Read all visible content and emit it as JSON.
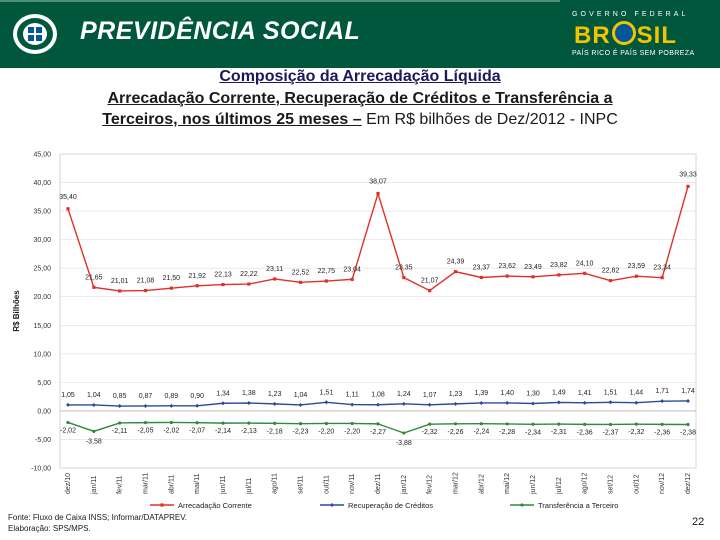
{
  "header": {
    "brand": "PREVIDÊNCIA SOCIAL",
    "gov_label": "GOVERNO FEDERAL",
    "brasil_left": "BR",
    "brasil_right": "SIL",
    "slogan": "PAÍS RICO É PAÍS SEM POBREZA",
    "colors": {
      "banner": "#00573c",
      "accent": "#f4c300"
    }
  },
  "titles": {
    "line1": "Composição da Arrecadação Líquida",
    "line2": "Arrecadação Corrente, Recuperação de Créditos e Transferência a",
    "line3_bold": "Terceiros, nos últimos 25 meses –",
    "line3_rest": " Em R$ bilhões de Dez/2012 - INPC"
  },
  "chart_data": {
    "type": "line",
    "ylabel": "R$ Bilhões",
    "ylim": [
      -10,
      45
    ],
    "yticks": [
      "45,00",
      "40,00",
      "35,00",
      "30,00",
      "25,00",
      "20,00",
      "15,00",
      "10,00",
      "5,00",
      "0,00",
      "-5,00",
      "-10,00"
    ],
    "ytick_values": [
      45,
      40,
      35,
      30,
      25,
      20,
      15,
      10,
      5,
      0,
      -5,
      -10
    ],
    "grid": true,
    "legend_position": "bottom",
    "categories": [
      "dez/10",
      "jan/11",
      "fev/11",
      "mar/11",
      "abr/11",
      "mai/11",
      "jun/11",
      "jul/11",
      "ago/11",
      "set/11",
      "out/11",
      "nov/11",
      "dez/11",
      "jan/12",
      "fev/12",
      "mar/12",
      "abr/12",
      "mai/12",
      "jun/12",
      "jul/12",
      "ago/12",
      "set/12",
      "out/12",
      "nov/12",
      "dez/12"
    ],
    "series": [
      {
        "name": "Arrecadação Corrente",
        "color": "#e0302a",
        "values": [
          35.4,
          21.65,
          21.01,
          21.08,
          21.5,
          21.92,
          22.13,
          22.22,
          23.11,
          22.52,
          22.75,
          23.04,
          38.07,
          23.35,
          21.07,
          24.39,
          23.37,
          23.62,
          23.49,
          23.82,
          24.1,
          22.82,
          23.59,
          23.34,
          39.33
        ],
        "labels": [
          "35,40",
          "21,65",
          "21,01",
          "21,08",
          "21,50",
          "21,92",
          "22,13",
          "22,22",
          "23,11",
          "22,52",
          "22,75",
          "23,04",
          "38,07",
          "23,35",
          "21,07",
          "24,39",
          "23,37",
          "23,62",
          "23,49",
          "23,82",
          "24,10",
          "22,82",
          "23,59",
          "23,34",
          "39,33"
        ]
      },
      {
        "name": "Recuperação de Créditos",
        "color": "#2a4a9a",
        "values": [
          1.05,
          1.04,
          0.85,
          0.87,
          0.89,
          0.9,
          1.34,
          1.38,
          1.23,
          1.04,
          1.51,
          1.11,
          1.08,
          1.24,
          1.07,
          1.23,
          1.39,
          1.4,
          1.3,
          1.49,
          1.41,
          1.51,
          1.44,
          1.71,
          1.74
        ],
        "labels": [
          "1,05",
          "1,04",
          "0,85",
          "0,87",
          "0,89",
          "0,90",
          "1,34",
          "1,38",
          "1,23",
          "1,04",
          "1,51",
          "1,11",
          "1,08",
          "1,24",
          "1,07",
          "1,23",
          "1,39",
          "1,40",
          "1,30",
          "1,49",
          "1,41",
          "1,51",
          "1,44",
          "1,71",
          "1,74"
        ]
      },
      {
        "name": "Transferência a Terceiro",
        "color": "#2e8b3a",
        "values": [
          -2.02,
          -3.58,
          -2.11,
          -2.05,
          -2.02,
          -2.07,
          -2.14,
          -2.13,
          -2.18,
          -2.23,
          -2.2,
          -2.2,
          -2.27,
          -3.88,
          -2.32,
          -2.26,
          -2.24,
          -2.28,
          -2.34,
          -2.31,
          -2.36,
          -2.37,
          -2.32,
          -2.36,
          -2.38
        ],
        "labels": [
          "-2,02",
          "-3,58",
          "-2,11",
          "-2,05",
          "-2,02",
          "-2,07",
          "-2,14",
          "-2,13",
          "-2,18",
          "-2,23",
          "-2,20",
          "-2,20",
          "-2,27",
          "-3,88",
          "-2,32",
          "-2,26",
          "-2,24",
          "-2,28",
          "-2,34",
          "-2,31",
          "-2,36",
          "-2,37",
          "-2,32",
          "-2,36",
          "-2,38"
        ]
      }
    ]
  },
  "footer": {
    "source_line1": "Fonte: Fluxo de Caixa INSS; Informar/DATAPREV.",
    "source_line2": "Elaboração: SPS/MPS.",
    "page_number": "22"
  }
}
